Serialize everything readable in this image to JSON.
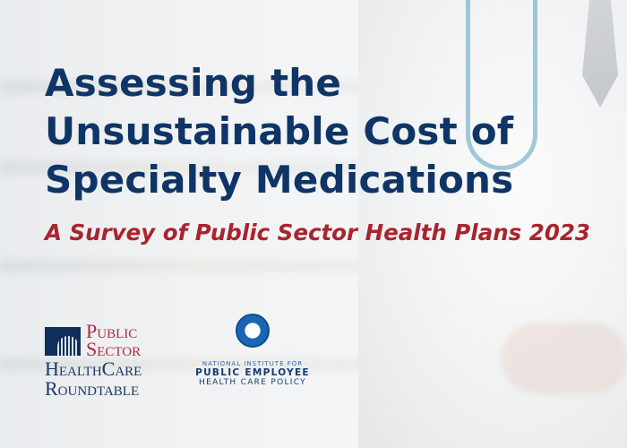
{
  "title_lines": [
    "Assessing the",
    "Unsustainable Cost of",
    "Specialty Medications"
  ],
  "subtitle": "A Survey of Public Sector Health Plans 2023",
  "logos": {
    "psh": {
      "line1": "Public",
      "line2": "Sector",
      "line3": "HealthCare",
      "line4": "Roundtable"
    },
    "nipe": {
      "line1": "NATIONAL INSTITUTE FOR",
      "line2": "PUBLIC EMPLOYEE",
      "line3": "HEALTH CARE POLICY"
    }
  },
  "colors": {
    "title": "#0f3567",
    "subtitle": "#a8242f"
  }
}
